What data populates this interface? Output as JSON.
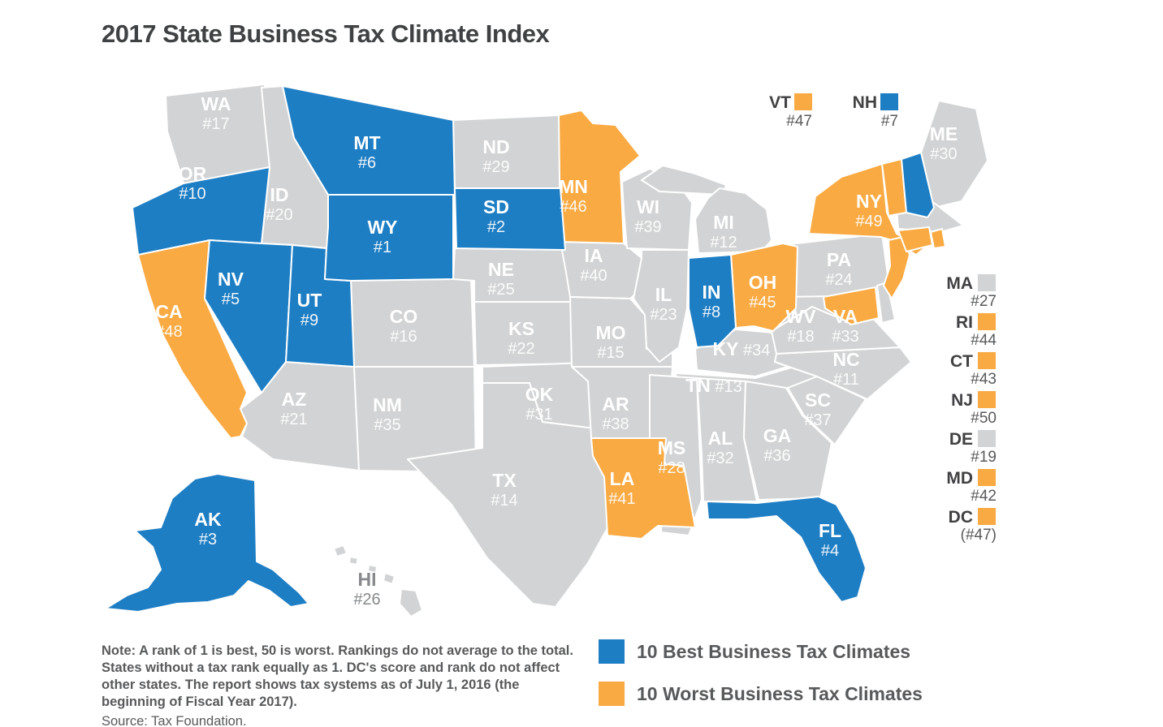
{
  "title": "2017 State Business Tax Climate Index",
  "colors": {
    "best": "#1E7EC4",
    "worst": "#FAAA42",
    "other": "#D2D3D4"
  },
  "legend": [
    {
      "id": "best",
      "label": "10 Best Business Tax Climates"
    },
    {
      "id": "worst",
      "label": "10 Worst Business Tax Climates"
    }
  ],
  "note": "Note: A rank of 1 is best, 50 is worst. Rankings do not average to the total. States without a tax rank equally as 1. DC's score and rank do not affect other states. The report shows tax systems as of July 1, 2016 (the beginning of Fiscal Year 2017).",
  "source": "Source: Tax Foundation.",
  "top_callouts": [
    {
      "abbr": "VT",
      "rank_label": "#47",
      "category": "worst"
    },
    {
      "abbr": "NH",
      "rank_label": "#7",
      "category": "best"
    }
  ],
  "side_callouts": [
    {
      "abbr": "MA",
      "rank_label": "#27",
      "category": "other"
    },
    {
      "abbr": "RI",
      "rank_label": "#44",
      "category": "worst"
    },
    {
      "abbr": "CT",
      "rank_label": "#43",
      "category": "worst"
    },
    {
      "abbr": "NJ",
      "rank_label": "#50",
      "category": "worst"
    },
    {
      "abbr": "DE",
      "rank_label": "#19",
      "category": "other"
    },
    {
      "abbr": "MD",
      "rank_label": "#42",
      "category": "worst"
    },
    {
      "abbr": "DC",
      "rank_label": "(#47)",
      "category": "worst"
    }
  ],
  "chart_data": {
    "type": "choropleth",
    "title": "2017 State Business Tax Climate Index",
    "metric": "State business tax climate rank (1 = best, 50 = worst)",
    "legend": [
      "10 Best Business Tax Climates",
      "10 Worst Business Tax Climates"
    ],
    "states": [
      {
        "abbr": "WA",
        "rank": 17,
        "rank_label": "#17",
        "category": "other"
      },
      {
        "abbr": "OR",
        "rank": 10,
        "rank_label": "#10",
        "category": "best"
      },
      {
        "abbr": "CA",
        "rank": 48,
        "rank_label": "#48",
        "category": "worst"
      },
      {
        "abbr": "ID",
        "rank": 20,
        "rank_label": "#20",
        "category": "other"
      },
      {
        "abbr": "NV",
        "rank": 5,
        "rank_label": "#5",
        "category": "best"
      },
      {
        "abbr": "UT",
        "rank": 9,
        "rank_label": "#9",
        "category": "best"
      },
      {
        "abbr": "AZ",
        "rank": 21,
        "rank_label": "#21",
        "category": "other"
      },
      {
        "abbr": "MT",
        "rank": 6,
        "rank_label": "#6",
        "category": "best"
      },
      {
        "abbr": "WY",
        "rank": 1,
        "rank_label": "#1",
        "category": "best"
      },
      {
        "abbr": "CO",
        "rank": 16,
        "rank_label": "#16",
        "category": "other"
      },
      {
        "abbr": "NM",
        "rank": 35,
        "rank_label": "#35",
        "category": "other"
      },
      {
        "abbr": "ND",
        "rank": 29,
        "rank_label": "#29",
        "category": "other"
      },
      {
        "abbr": "SD",
        "rank": 2,
        "rank_label": "#2",
        "category": "best"
      },
      {
        "abbr": "NE",
        "rank": 25,
        "rank_label": "#25",
        "category": "other"
      },
      {
        "abbr": "KS",
        "rank": 22,
        "rank_label": "#22",
        "category": "other"
      },
      {
        "abbr": "OK",
        "rank": 31,
        "rank_label": "#31",
        "category": "other"
      },
      {
        "abbr": "TX",
        "rank": 14,
        "rank_label": "#14",
        "category": "other"
      },
      {
        "abbr": "MN",
        "rank": 46,
        "rank_label": "#46",
        "category": "worst"
      },
      {
        "abbr": "IA",
        "rank": 40,
        "rank_label": "#40",
        "category": "other"
      },
      {
        "abbr": "MO",
        "rank": 15,
        "rank_label": "#15",
        "category": "other"
      },
      {
        "abbr": "AR",
        "rank": 38,
        "rank_label": "#38",
        "category": "other"
      },
      {
        "abbr": "LA",
        "rank": 41,
        "rank_label": "#41",
        "category": "worst"
      },
      {
        "abbr": "WI",
        "rank": 39,
        "rank_label": "#39",
        "category": "other"
      },
      {
        "abbr": "IL",
        "rank": 23,
        "rank_label": "#23",
        "category": "other"
      },
      {
        "abbr": "MI",
        "rank": 12,
        "rank_label": "#12",
        "category": "other"
      },
      {
        "abbr": "IN",
        "rank": 8,
        "rank_label": "#8",
        "category": "best"
      },
      {
        "abbr": "OH",
        "rank": 45,
        "rank_label": "#45",
        "category": "worst"
      },
      {
        "abbr": "KY",
        "rank": 34,
        "rank_label": "#34",
        "category": "other"
      },
      {
        "abbr": "TN",
        "rank": 13,
        "rank_label": "#13",
        "category": "other"
      },
      {
        "abbr": "MS",
        "rank": 28,
        "rank_label": "#28",
        "category": "other"
      },
      {
        "abbr": "AL",
        "rank": 32,
        "rank_label": "#32",
        "category": "other"
      },
      {
        "abbr": "GA",
        "rank": 36,
        "rank_label": "#36",
        "category": "other"
      },
      {
        "abbr": "FL",
        "rank": 4,
        "rank_label": "#4",
        "category": "best"
      },
      {
        "abbr": "SC",
        "rank": 37,
        "rank_label": "#37",
        "category": "other"
      },
      {
        "abbr": "NC",
        "rank": 11,
        "rank_label": "#11",
        "category": "other"
      },
      {
        "abbr": "VA",
        "rank": 33,
        "rank_label": "#33",
        "category": "other"
      },
      {
        "abbr": "WV",
        "rank": 18,
        "rank_label": "#18",
        "category": "other"
      },
      {
        "abbr": "PA",
        "rank": 24,
        "rank_label": "#24",
        "category": "other"
      },
      {
        "abbr": "NY",
        "rank": 49,
        "rank_label": "#49",
        "category": "worst"
      },
      {
        "abbr": "NJ",
        "rank": 50,
        "rank_label": "#50",
        "category": "worst"
      },
      {
        "abbr": "DE",
        "rank": 19,
        "rank_label": "#19",
        "category": "other"
      },
      {
        "abbr": "MD",
        "rank": 42,
        "rank_label": "#42",
        "category": "worst"
      },
      {
        "abbr": "DC",
        "rank": 47,
        "rank_label": "(#47)",
        "category": "worst"
      },
      {
        "abbr": "CT",
        "rank": 43,
        "rank_label": "#43",
        "category": "worst"
      },
      {
        "abbr": "RI",
        "rank": 44,
        "rank_label": "#44",
        "category": "worst"
      },
      {
        "abbr": "MA",
        "rank": 27,
        "rank_label": "#27",
        "category": "other"
      },
      {
        "abbr": "VT",
        "rank": 47,
        "rank_label": "#47",
        "category": "worst"
      },
      {
        "abbr": "NH",
        "rank": 7,
        "rank_label": "#7",
        "category": "best"
      },
      {
        "abbr": "ME",
        "rank": 30,
        "rank_label": "#30",
        "category": "other"
      },
      {
        "abbr": "AK",
        "rank": 3,
        "rank_label": "#3",
        "category": "best"
      },
      {
        "abbr": "HI",
        "rank": 26,
        "rank_label": "#26",
        "category": "other"
      }
    ]
  }
}
